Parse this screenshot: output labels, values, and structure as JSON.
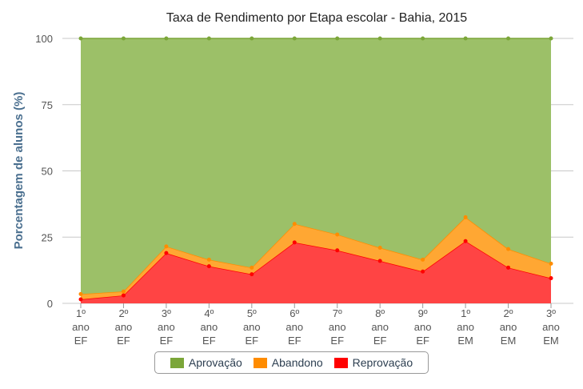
{
  "chart_data": {
    "type": "area",
    "stacked": true,
    "title": "Taxa de Rendimento por Etapa escolar - Bahia, 2015",
    "ylabel": "Porcentagem de alunos (%)",
    "ylim": [
      0,
      100
    ],
    "yticks": [
      "0",
      "25",
      "50",
      "75",
      "100"
    ],
    "categories": [
      [
        "1º",
        "ano",
        "EF"
      ],
      [
        "2º",
        "ano",
        "EF"
      ],
      [
        "3º",
        "ano",
        "EF"
      ],
      [
        "4º",
        "ano",
        "EF"
      ],
      [
        "5º",
        "ano",
        "EF"
      ],
      [
        "6º",
        "ano",
        "EF"
      ],
      [
        "7º",
        "ano",
        "EF"
      ],
      [
        "8º",
        "ano",
        "EF"
      ],
      [
        "9º",
        "ano",
        "EF"
      ],
      [
        "1º",
        "ano",
        "EM"
      ],
      [
        "2º",
        "ano",
        "EM"
      ],
      [
        "3º",
        "ano",
        "EM"
      ]
    ],
    "series": [
      {
        "name": "Reprovação",
        "color": "#ff0000",
        "fill": "#ff4444",
        "values": [
          1.5,
          3,
          19,
          14,
          11,
          23,
          20,
          16,
          12,
          23.5,
          13.5,
          9.5
        ]
      },
      {
        "name": "Abandono",
        "color": "#ff8c00",
        "fill": "#ffa733",
        "values": [
          2,
          1.5,
          2.5,
          2.5,
          2.5,
          7,
          6,
          5,
          4.5,
          9,
          7,
          5.5
        ]
      },
      {
        "name": "Aprovação",
        "color": "#7ba639",
        "fill": "#9cc068",
        "values": [
          96.5,
          95.5,
          78.5,
          83.5,
          86.5,
          70,
          74,
          79,
          83.5,
          67.5,
          79.5,
          85
        ]
      }
    ],
    "legend_order": [
      "Aprovação",
      "Abandono",
      "Reprovação"
    ],
    "legend_position": "bottom-center",
    "grid": true
  }
}
